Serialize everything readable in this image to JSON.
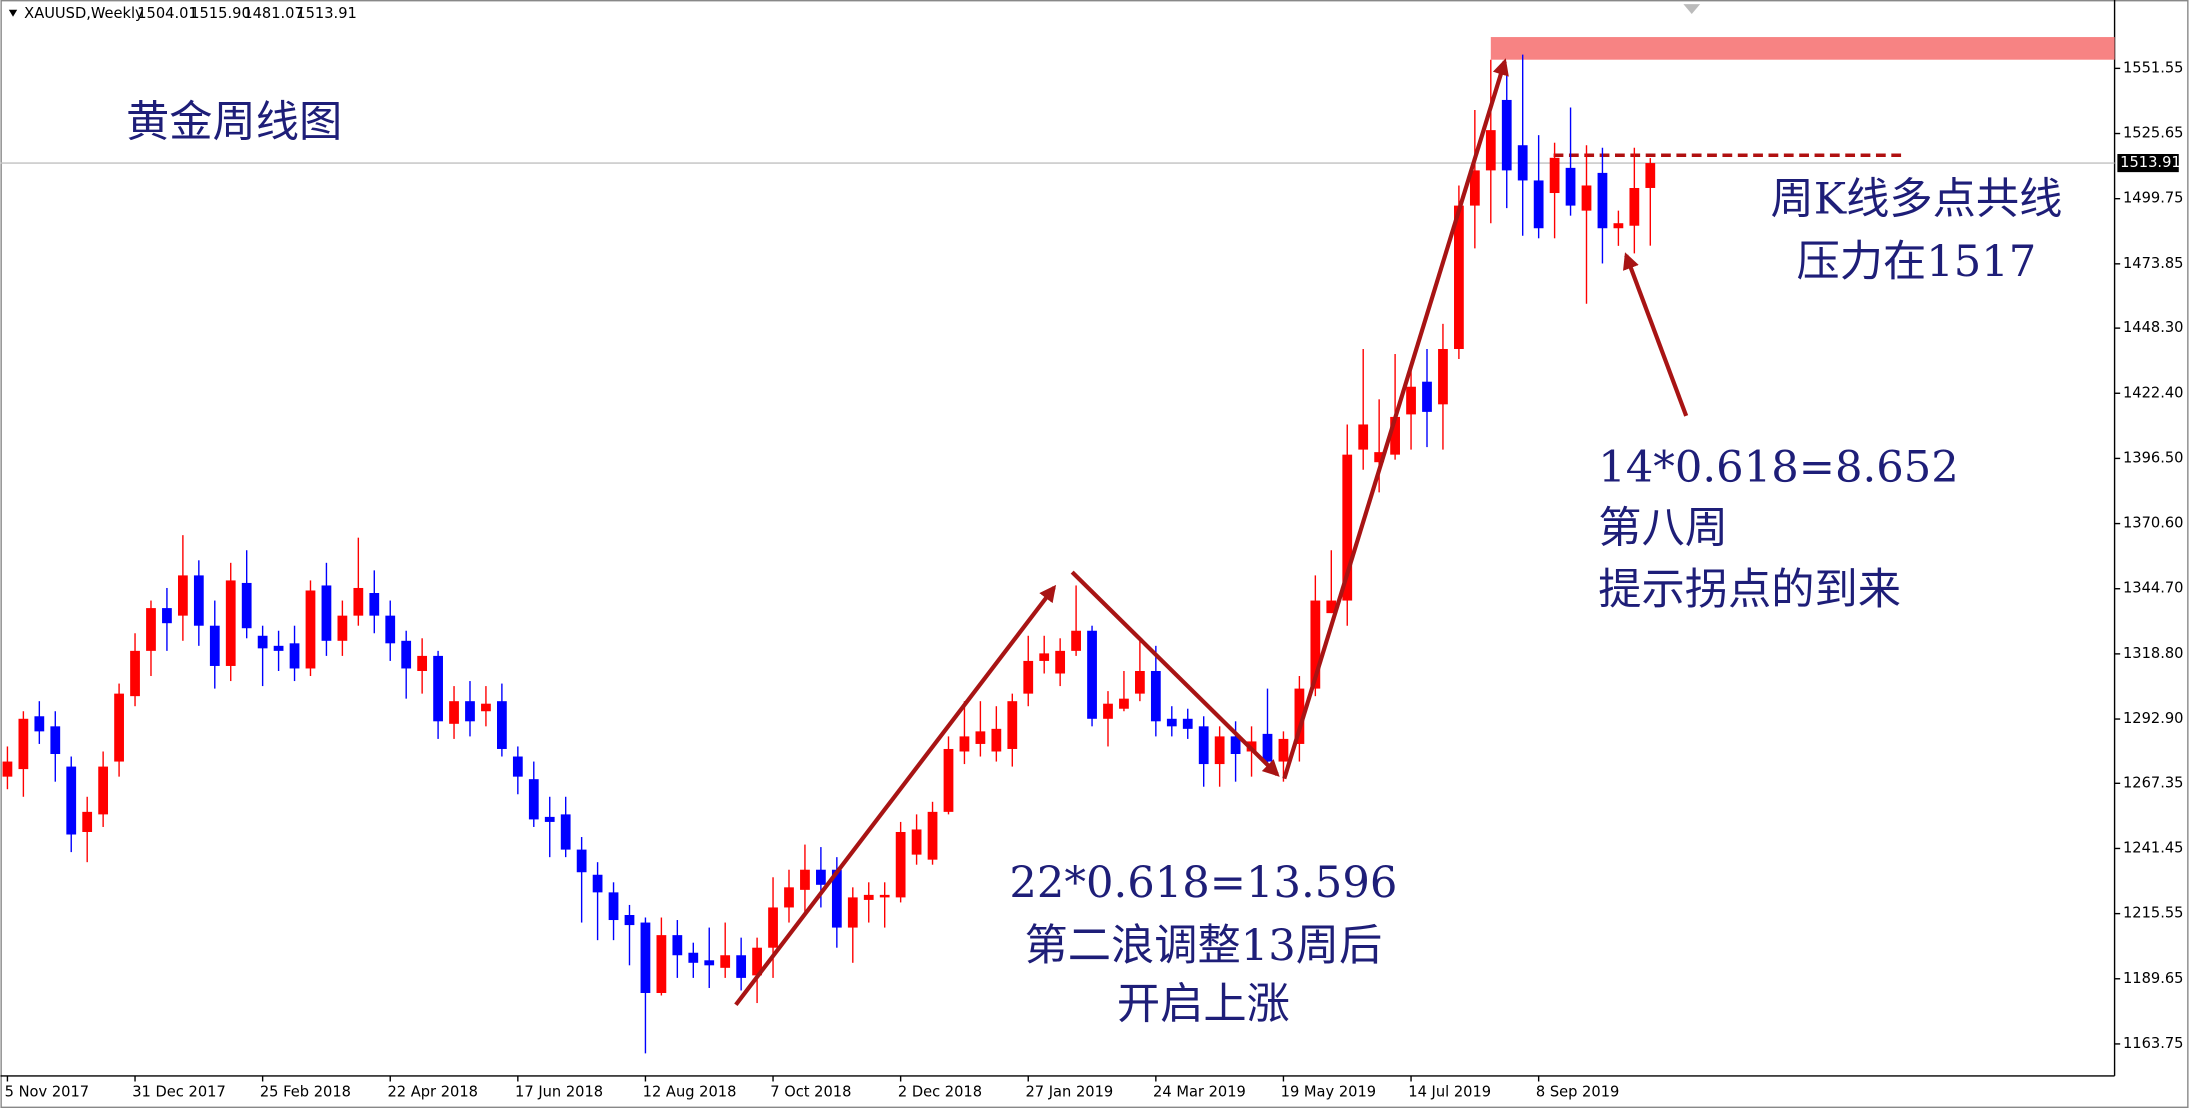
{
  "chart_data": {
    "type": "candlestick",
    "title": "黄金周线图",
    "symbol": "XAUUSD,Weekly",
    "header_values": [
      "1504.01",
      "1515.90",
      "1481.07",
      "1513.91"
    ],
    "annotations": [
      "周K线多点共线",
      "压力在1517",
      "14*0.618=8.652",
      "第八周",
      "提示拐点的到来",
      "22*0.618=13.596",
      "第二浪调整13周后",
      "开启上涨"
    ],
    "categories": [
      "5 Nov 2017",
      null,
      null,
      null,
      null,
      null,
      null,
      null,
      "31 Dec 2017",
      null,
      null,
      null,
      null,
      null,
      null,
      null,
      "25 Feb 2018",
      null,
      null,
      null,
      null,
      null,
      null,
      null,
      "22 Apr 2018",
      null,
      null,
      null,
      null,
      null,
      null,
      null,
      "17 Jun 2018",
      null,
      null,
      null,
      null,
      null,
      null,
      null,
      "12 Aug 2018",
      null,
      null,
      null,
      null,
      null,
      null,
      null,
      "7 Oct 2018",
      null,
      null,
      null,
      null,
      null,
      null,
      null,
      "2 Dec 2018",
      null,
      null,
      null,
      null,
      null,
      null,
      null,
      "27 Jan 2019",
      null,
      null,
      null,
      null,
      null,
      null,
      null,
      "24 Mar 2019",
      null,
      null,
      null,
      null,
      null,
      null,
      null,
      "19 May 2019",
      null,
      null,
      null,
      null,
      null,
      null,
      null,
      "14 Jul 2019",
      null,
      null,
      null,
      null,
      null,
      null,
      null,
      "8 Sep 2019",
      null,
      null,
      null,
      null,
      null,
      null,
      null
    ],
    "open": [
      1270,
      1273,
      1294,
      1290,
      1274,
      1248,
      1255,
      1276,
      1302,
      1320,
      1337,
      1334,
      1350,
      1330,
      1314,
      1347,
      1326,
      1322,
      1323,
      1313,
      1346,
      1324,
      1334,
      1343,
      1334,
      1324,
      1312,
      1318,
      1291,
      1300,
      1296,
      1300,
      1278,
      1269,
      1254,
      1255,
      1241,
      1231,
      1224,
      1215,
      1212,
      1184,
      1207,
      1200,
      1197,
      1194,
      1199,
      1191,
      1202,
      1218,
      1225,
      1233,
      1233,
      1210,
      1221,
      1222,
      1222,
      1239,
      1237,
      1256,
      1280,
      1283,
      1280,
      1281,
      1303,
      1316,
      1311,
      1320,
      1328,
      1293,
      1297,
      1303,
      1312,
      1293,
      1293,
      1290,
      1275,
      1286,
      1280,
      1287,
      1276,
      1283,
      1305,
      1335,
      1340,
      1400,
      1395,
      1398,
      1414,
      1427,
      1418,
      1440,
      1497,
      1511,
      1539,
      1521,
      1507,
      1502,
      1512,
      1495,
      1510,
      1488,
      1489,
      1504.01
    ],
    "high": [
      1282,
      1296,
      1300,
      1296,
      1278,
      1262,
      1280,
      1307,
      1327,
      1340,
      1345,
      1366,
      1356,
      1340,
      1355,
      1360,
      1330,
      1328,
      1330,
      1348,
      1355,
      1340,
      1365,
      1352,
      1340,
      1328,
      1325,
      1320,
      1306,
      1308,
      1306,
      1307,
      1282,
      1276,
      1262,
      1262,
      1246,
      1236,
      1228,
      1219,
      1214,
      1214,
      1213,
      1204,
      1210,
      1212,
      1206,
      1206,
      1230,
      1233,
      1243,
      1242,
      1238,
      1226,
      1228,
      1228,
      1252,
      1255,
      1260,
      1286,
      1300,
      1300,
      1298,
      1303,
      1326,
      1326,
      1325,
      1346,
      1330,
      1304,
      1312,
      1324,
      1322,
      1298,
      1297,
      1294,
      1290,
      1292,
      1290,
      1305,
      1288,
      1310,
      1350,
      1360,
      1410,
      1440,
      1420,
      1438,
      1433,
      1440,
      1450,
      1505,
      1535,
      1555,
      1550,
      1557,
      1525,
      1522,
      1536,
      1521,
      1520,
      1495,
      1520,
      1515.9
    ],
    "low": [
      1265,
      1262,
      1283,
      1268,
      1240,
      1236,
      1250,
      1270,
      1298,
      1310,
      1320,
      1324,
      1322,
      1305,
      1308,
      1325,
      1306,
      1312,
      1308,
      1310,
      1318,
      1318,
      1330,
      1327,
      1316,
      1301,
      1303,
      1285,
      1285,
      1286,
      1290,
      1278,
      1263,
      1250,
      1238,
      1238,
      1212,
      1205,
      1205,
      1195,
      1160,
      1183,
      1190,
      1190,
      1186,
      1190,
      1185,
      1180,
      1190,
      1212,
      1216,
      1218,
      1202,
      1196,
      1212,
      1210,
      1220,
      1235,
      1235,
      1255,
      1275,
      1278,
      1276,
      1274,
      1298,
      1311,
      1306,
      1318,
      1290,
      1282,
      1296,
      1300,
      1286,
      1286,
      1285,
      1266,
      1266,
      1268,
      1270,
      1274,
      1268,
      1276,
      1302,
      1335,
      1330,
      1392,
      1383,
      1396,
      1400,
      1401,
      1400,
      1436,
      1480,
      1490,
      1496,
      1485,
      1484,
      1484,
      1493,
      1458,
      1474,
      1481,
      1478,
      1481.07
    ],
    "close": [
      1276,
      1293,
      1288,
      1279,
      1247,
      1256,
      1274,
      1303,
      1320,
      1337,
      1331,
      1350,
      1330,
      1314,
      1348,
      1329,
      1321,
      1320,
      1313,
      1344,
      1324,
      1334,
      1345,
      1334,
      1323,
      1313,
      1318,
      1292,
      1300,
      1292,
      1299,
      1281,
      1270,
      1253,
      1252,
      1241,
      1232,
      1224,
      1213,
      1211,
      1184,
      1207,
      1199,
      1196,
      1195,
      1199,
      1190,
      1202,
      1218,
      1226,
      1233,
      1227,
      1210,
      1222,
      1223,
      1223,
      1248,
      1249,
      1256,
      1281,
      1286,
      1288,
      1289,
      1300,
      1316,
      1319,
      1320,
      1328,
      1293,
      1299,
      1301,
      1312,
      1292,
      1290,
      1289,
      1275,
      1286,
      1279,
      1284,
      1276,
      1285,
      1305,
      1340,
      1340,
      1398,
      1410,
      1399,
      1413,
      1425,
      1415,
      1440,
      1497,
      1511,
      1527,
      1511,
      1507,
      1488,
      1516,
      1497,
      1505,
      1488,
      1490,
      1504,
      1513.91
    ],
    "up_color": "#ff0000",
    "down_color": "#0000ff",
    "resistance_line": 1517,
    "resistance_zone": [
      1555,
      1564
    ],
    "ylim": [
      1151.04,
      1578.73
    ],
    "yticks": [
      1551.55,
      1525.65,
      1499.75,
      1473.85,
      {
        "value": 1448.3,
        "label": "1448.30"
      },
      {
        "value": 1422.4,
        "label": "1422.40"
      },
      {
        "value": 1396.5,
        "label": "1396.50"
      },
      {
        "value": 1370.6,
        "label": "1370.60"
      },
      {
        "value": 1344.7,
        "label": "1344.70"
      },
      {
        "value": 1318.8,
        "label": "1318.80"
      },
      {
        "value": 1292.9,
        "label": "1292.90"
      },
      1267.35,
      1241.45,
      1215.55,
      1189.65,
      1163.75
    ]
  }
}
